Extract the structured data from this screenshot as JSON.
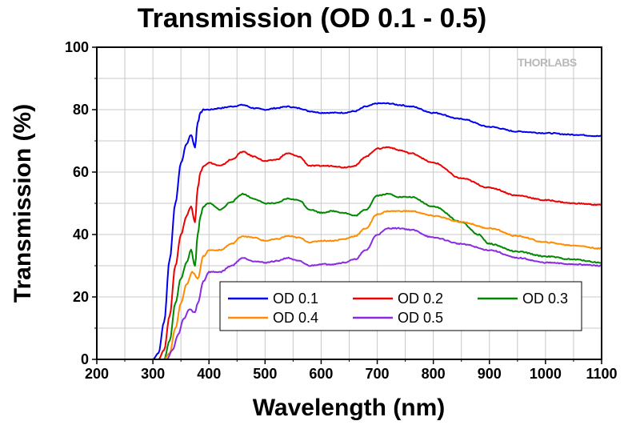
{
  "chart_data": {
    "type": "line",
    "title": "Transmission (OD 0.1 - 0.5)",
    "xlabel": "Wavelength (nm)",
    "ylabel": "Transmission (%)",
    "xlim": [
      200,
      1100
    ],
    "ylim": [
      0,
      100
    ],
    "xticks": [
      200,
      300,
      400,
      500,
      600,
      700,
      800,
      900,
      1000,
      1100
    ],
    "yticks": [
      0,
      20,
      40,
      60,
      80,
      100
    ],
    "grid": true,
    "legend_position": "bottom-right",
    "watermark": "THORLABS",
    "series": [
      {
        "name": "OD 0.1",
        "color": "#0000ee",
        "x": [
          200,
          300,
          310,
          320,
          330,
          340,
          350,
          360,
          368,
          375,
          380,
          385,
          390,
          400,
          420,
          440,
          460,
          480,
          500,
          520,
          540,
          560,
          580,
          600,
          620,
          640,
          660,
          680,
          700,
          720,
          740,
          760,
          800,
          850,
          900,
          950,
          1000,
          1050,
          1100
        ],
        "y": [
          0,
          0,
          2,
          12,
          32,
          50,
          63,
          69,
          72,
          68,
          76,
          79,
          80,
          80,
          80.5,
          81,
          81.5,
          80.5,
          80,
          80.5,
          81,
          80.5,
          79.5,
          79,
          79,
          79,
          79.5,
          81,
          82,
          82,
          81.5,
          81,
          79,
          77,
          74.5,
          73,
          72.5,
          72,
          71.5
        ]
      },
      {
        "name": "OD 0.2",
        "color": "#ee0000",
        "x": [
          200,
          310,
          320,
          330,
          340,
          350,
          360,
          368,
          375,
          380,
          385,
          390,
          400,
          420,
          440,
          460,
          480,
          500,
          520,
          540,
          560,
          580,
          600,
          620,
          640,
          660,
          680,
          700,
          720,
          740,
          760,
          800,
          850,
          900,
          950,
          1000,
          1050,
          1100
        ],
        "y": [
          0,
          0,
          3,
          14,
          30,
          40,
          46,
          49,
          44,
          55,
          60,
          62,
          63,
          62,
          64,
          66.5,
          65,
          63.5,
          64,
          66,
          65,
          62,
          62,
          62,
          61.5,
          62,
          65,
          67.5,
          68,
          67,
          66,
          63,
          58,
          55,
          52.5,
          51,
          50,
          49.5
        ]
      },
      {
        "name": "OD 0.3",
        "color": "#008800",
        "x": [
          200,
          320,
          330,
          340,
          350,
          360,
          368,
          375,
          380,
          385,
          390,
          400,
          420,
          440,
          460,
          480,
          500,
          520,
          540,
          560,
          580,
          600,
          620,
          640,
          660,
          680,
          700,
          720,
          740,
          760,
          800,
          850,
          880,
          900,
          950,
          1000,
          1050,
          1100
        ],
        "y": [
          0,
          0,
          6,
          18,
          26,
          31,
          35,
          30,
          40,
          46,
          49,
          50,
          48,
          50.5,
          53,
          51.5,
          50,
          50,
          51.5,
          51,
          48,
          47,
          47.5,
          47,
          46,
          48,
          52.5,
          53,
          52,
          52,
          49,
          44,
          40,
          37,
          34.5,
          33,
          32,
          31
        ]
      },
      {
        "name": "OD 0.4",
        "color": "#ff8c00",
        "x": [
          200,
          320,
          330,
          340,
          350,
          360,
          370,
          380,
          390,
          400,
          420,
          440,
          460,
          480,
          500,
          520,
          540,
          560,
          580,
          600,
          620,
          640,
          660,
          680,
          700,
          720,
          740,
          760,
          800,
          850,
          900,
          950,
          1000,
          1050,
          1100
        ],
        "y": [
          0,
          0,
          2,
          10,
          18,
          24,
          28,
          26,
          33,
          35,
          35,
          37,
          39.5,
          39,
          38,
          38.5,
          39.5,
          39,
          37.5,
          38,
          38,
          38.5,
          39.5,
          42,
          46.5,
          47.5,
          47.5,
          47.5,
          46,
          44,
          42,
          39.5,
          37.5,
          36.5,
          35.5
        ]
      },
      {
        "name": "OD 0.5",
        "color": "#8a2be2",
        "x": [
          200,
          325,
          335,
          345,
          355,
          365,
          375,
          380,
          390,
          400,
          420,
          440,
          460,
          480,
          500,
          520,
          540,
          560,
          580,
          600,
          620,
          640,
          660,
          680,
          700,
          720,
          740,
          760,
          800,
          850,
          900,
          950,
          1000,
          1050,
          1100
        ],
        "y": [
          0,
          0,
          3,
          8,
          13,
          16,
          15,
          18,
          25,
          28,
          28,
          30,
          32.5,
          31.5,
          31,
          31.5,
          32.5,
          31.5,
          30,
          30.5,
          30.5,
          31,
          32,
          35,
          40,
          42,
          42,
          41.5,
          39,
          37,
          35,
          32.5,
          31,
          30.5,
          30
        ]
      }
    ]
  }
}
